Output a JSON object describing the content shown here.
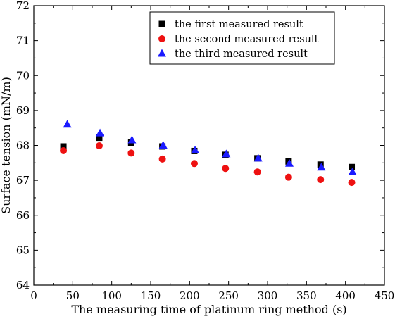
{
  "chart_data": {
    "type": "scatter",
    "title": "",
    "xlabel": "The measuring time of platinum ring method (s)",
    "ylabel": "Surface tension (mN/m)",
    "xlim": [
      0,
      450
    ],
    "ylim": [
      64,
      72
    ],
    "x_ticks": [
      0,
      50,
      100,
      150,
      200,
      250,
      300,
      350,
      400,
      450
    ],
    "y_ticks": [
      64,
      65,
      66,
      67,
      68,
      69,
      70,
      71,
      72
    ],
    "grid": false,
    "legend_position": "top-right",
    "series": [
      {
        "name": "the first measured result",
        "marker": "square",
        "color": "#000000",
        "points": [
          [
            38,
            67.97
          ],
          [
            84,
            68.22
          ],
          [
            125,
            68.08
          ],
          [
            165,
            67.97
          ],
          [
            206,
            67.84
          ],
          [
            246,
            67.73
          ],
          [
            287,
            67.63
          ],
          [
            327,
            67.54
          ],
          [
            368,
            67.45
          ],
          [
            408,
            67.38
          ]
        ]
      },
      {
        "name": "the second measured result",
        "marker": "circle",
        "color": "#ee1111",
        "points": [
          [
            38,
            67.85
          ],
          [
            84,
            67.99
          ],
          [
            125,
            67.78
          ],
          [
            165,
            67.61
          ],
          [
            206,
            67.48
          ],
          [
            246,
            67.34
          ],
          [
            287,
            67.24
          ],
          [
            327,
            67.09
          ],
          [
            368,
            67.02
          ],
          [
            408,
            66.94
          ]
        ]
      },
      {
        "name": "the third measured result",
        "marker": "triangle",
        "color": "#1a1aff",
        "points": [
          [
            43,
            68.6
          ],
          [
            85,
            68.35
          ],
          [
            126,
            68.15
          ],
          [
            166,
            68.0
          ],
          [
            207,
            67.86
          ],
          [
            247,
            67.75
          ],
          [
            288,
            67.63
          ],
          [
            328,
            67.48
          ],
          [
            369,
            67.37
          ],
          [
            409,
            67.24
          ]
        ]
      }
    ]
  }
}
